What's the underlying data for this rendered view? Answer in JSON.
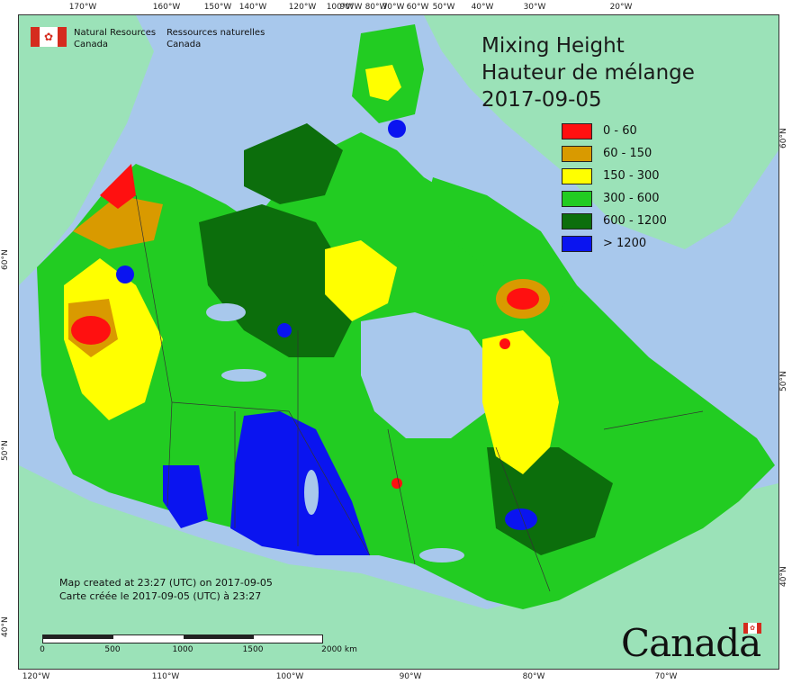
{
  "header": {
    "dept_en": [
      "Natural Resources",
      "Canada"
    ],
    "dept_fr": [
      "Ressources naturelles",
      "Canada"
    ],
    "flag_icon": "maple-leaf-flag-icon"
  },
  "title": {
    "line1": "Mixing Height",
    "line2": "Hauteur de mélange",
    "date": "2017-09-05"
  },
  "legend": [
    {
      "label": "0 - 60",
      "color": "#ff1010"
    },
    {
      "label": "60 - 150",
      "color": "#d99a00"
    },
    {
      "label": "150 - 300",
      "color": "#ffff00"
    },
    {
      "label": "300 - 600",
      "color": "#22cc22"
    },
    {
      "label": "600 - 1200",
      "color": "#0c6e0c"
    },
    {
      "label": "> 1200",
      "color": "#0a14f0"
    }
  ],
  "credit": {
    "en": "Map created at 23:27 (UTC) on 2017-09-05",
    "fr": "Carte créée le 2017-09-05 (UTC) à 23:27"
  },
  "scale": {
    "labels": [
      "0",
      "500",
      "1000",
      "1500",
      "2000  km"
    ]
  },
  "wordmark": "Canada",
  "graticule": {
    "top": [
      "170°W",
      "160°W",
      "150°W",
      "140°W",
      "120°W",
      "100°W",
      "90°W",
      "80°W",
      "70°W",
      "60°W",
      "50°W",
      "40°W",
      "30°W",
      "20°W"
    ],
    "bottom": [
      "120°W",
      "110°W",
      "100°W",
      "90°W",
      "80°W",
      "70°W"
    ],
    "left": [
      "60°N",
      "50°N",
      "40°N"
    ],
    "right": [
      "60°N",
      "50°N",
      "40°N"
    ]
  },
  "colors": {
    "ocean": "#a8c8ec",
    "foreign_land": "#9be2b8",
    "lakes": "#a8c8ec"
  }
}
